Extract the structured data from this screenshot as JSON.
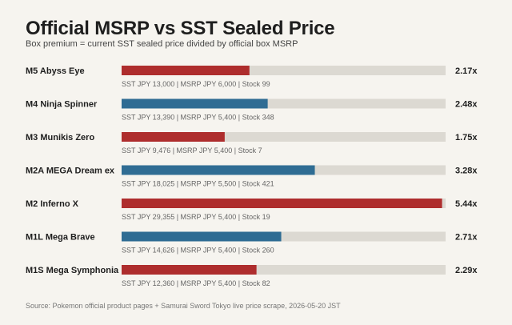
{
  "title": "Official MSRP vs SST Sealed Price",
  "subtitle": "Box premium = current SST sealed price divided by official box MSRP",
  "source": "Source: Pokemon official product pages + Samurai Sword Tokyo live price scrape, 2026-05-20 JST",
  "colors": {
    "red": "#ae2d2d",
    "blue": "#2f6c93",
    "track": "#dcd9d2",
    "background": "#f6f4ef"
  },
  "chart_data": {
    "type": "bar",
    "orientation": "horizontal",
    "xlim": [
      0,
      5.5
    ],
    "grid": false,
    "legend": "none",
    "rows": [
      {
        "label": "M5 Abyss Eye",
        "value": 2.17,
        "value_label": "2.17x",
        "detail": "SST JPY 13,000 | MSRP JPY 6,000 | Stock 99",
        "color": "red"
      },
      {
        "label": "M4 Ninja Spinner",
        "value": 2.48,
        "value_label": "2.48x",
        "detail": "SST JPY 13,390 | MSRP JPY 5,400 | Stock 348",
        "color": "blue"
      },
      {
        "label": "M3 Munikis Zero",
        "value": 1.75,
        "value_label": "1.75x",
        "detail": "SST JPY 9,476 | MSRP JPY 5,400 | Stock 7",
        "color": "red"
      },
      {
        "label": "M2A MEGA Dream ex",
        "value": 3.28,
        "value_label": "3.28x",
        "detail": "SST JPY 18,025 | MSRP JPY 5,500 | Stock 421",
        "color": "blue"
      },
      {
        "label": "M2 Inferno X",
        "value": 5.44,
        "value_label": "5.44x",
        "detail": "SST JPY 29,355 | MSRP JPY 5,400 | Stock 19",
        "color": "red"
      },
      {
        "label": "M1L Mega Brave",
        "value": 2.71,
        "value_label": "2.71x",
        "detail": "SST JPY 14,626 | MSRP JPY 5,400 | Stock 260",
        "color": "blue"
      },
      {
        "label": "M1S Mega Symphonia",
        "value": 2.29,
        "value_label": "2.29x",
        "detail": "SST JPY 12,360 | MSRP JPY 5,400 | Stock 82",
        "color": "red"
      }
    ]
  }
}
